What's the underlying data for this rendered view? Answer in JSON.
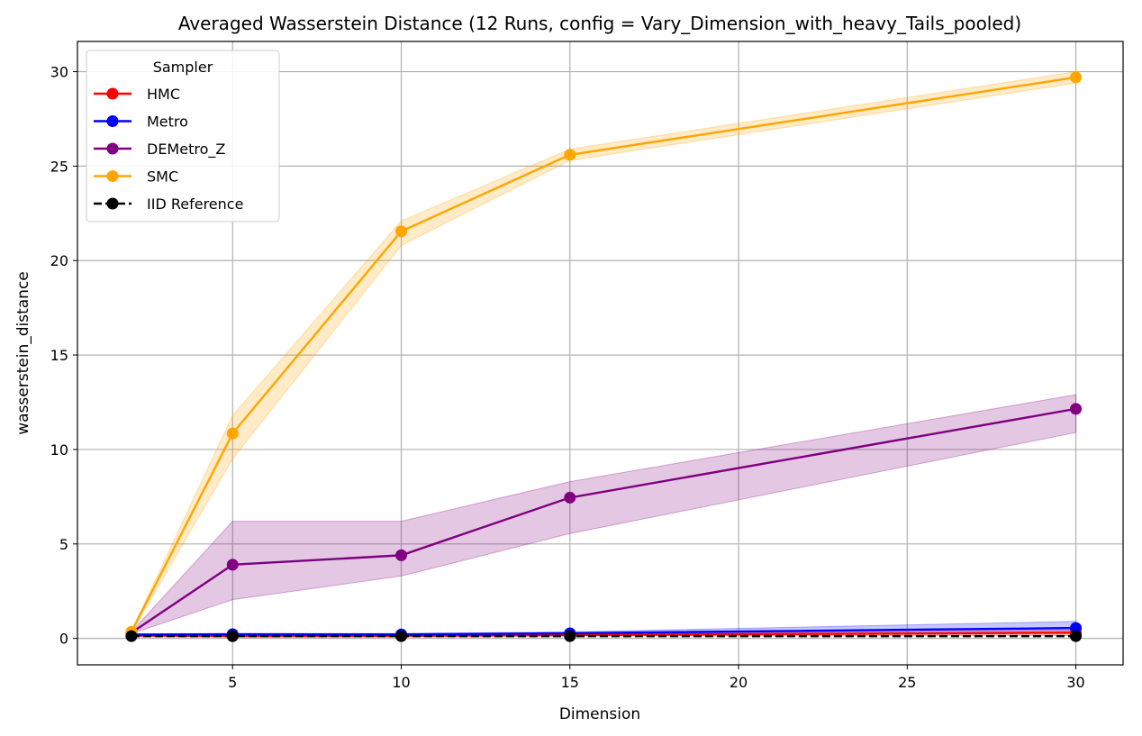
{
  "chart_data": {
    "type": "line",
    "title": "Averaged Wasserstein Distance (12 Runs, config = Vary_Dimension_with_heavy_Tails_pooled)",
    "xlabel": "Dimension",
    "ylabel": "wasserstein_distance",
    "xlim": [
      0.4,
      31.4
    ],
    "ylim": [
      -1.4,
      31.6
    ],
    "xticks": [
      5,
      10,
      15,
      20,
      25,
      30
    ],
    "yticks": [
      0,
      5,
      10,
      15,
      20,
      25,
      30
    ],
    "grid": true,
    "legend": {
      "title": "Sampler",
      "position": "top-left"
    },
    "x": [
      2,
      5,
      10,
      15,
      30
    ],
    "series": [
      {
        "name": "HMC",
        "color": "#ff0000",
        "dash": false,
        "values": [
          0.15,
          0.12,
          0.13,
          0.18,
          0.3
        ],
        "lower": [
          0.12,
          0.1,
          0.1,
          0.12,
          0.15
        ],
        "upper": [
          0.18,
          0.15,
          0.16,
          0.24,
          0.45
        ]
      },
      {
        "name": "Metro",
        "color": "#0000ff",
        "dash": false,
        "values": [
          0.2,
          0.22,
          0.21,
          0.27,
          0.55
        ],
        "lower": [
          0.17,
          0.18,
          0.17,
          0.2,
          0.3
        ],
        "upper": [
          0.24,
          0.26,
          0.26,
          0.34,
          0.9
        ]
      },
      {
        "name": "DEMetro_Z",
        "color": "#800080",
        "dash": false,
        "values": [
          0.3,
          3.9,
          4.4,
          7.45,
          12.15
        ],
        "lower": [
          0.25,
          2.05,
          3.3,
          5.55,
          10.9
        ],
        "upper": [
          0.35,
          6.2,
          6.2,
          8.3,
          12.9
        ]
      },
      {
        "name": "SMC",
        "color": "#ffa500",
        "dash": false,
        "values": [
          0.35,
          10.85,
          21.55,
          25.6,
          29.7
        ],
        "lower": [
          0.3,
          9.5,
          20.8,
          25.3,
          29.4
        ],
        "upper": [
          0.4,
          11.8,
          22.1,
          25.9,
          30.0
        ]
      },
      {
        "name": "IID Reference",
        "color": "#000000",
        "dash": true,
        "values": [
          0.12,
          0.12,
          0.12,
          0.12,
          0.12
        ]
      }
    ]
  }
}
